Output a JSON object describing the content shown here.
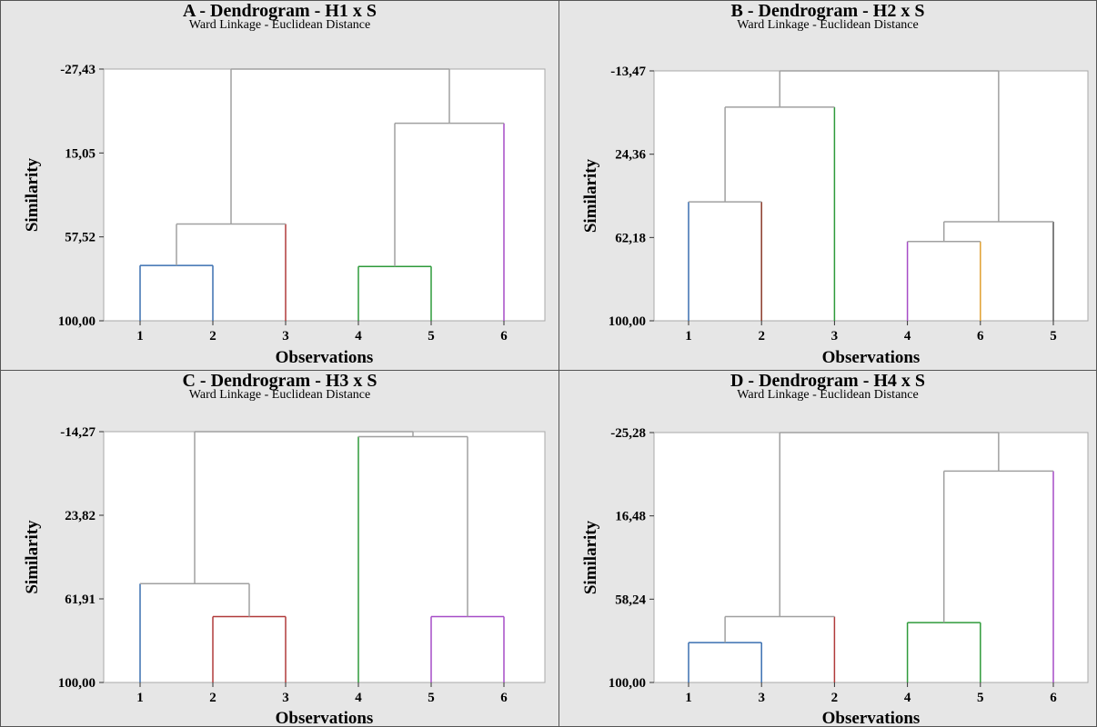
{
  "figure": {
    "background": "#e6e6e6",
    "plot_background": "#ffffff",
    "border_color": "#555555",
    "link_color": "#a0a0a0"
  },
  "chart_data": [
    {
      "type": "dendrogram",
      "panel": "A",
      "title": "A - Dendrogram - H1 x S",
      "subtitle": "Ward Linkage - Euclidean Distance",
      "xlabel": "Observations",
      "ylabel": "Similarity",
      "y_ticks": [
        "-27,43",
        "15,05",
        "57,52",
        "100,00"
      ],
      "ylim": [
        100,
        -27.43
      ],
      "leaf_order": [
        "1",
        "2",
        "3",
        "4",
        "5",
        "6"
      ],
      "merges": [
        {
          "left": "1",
          "right": "2",
          "similarity": 72,
          "color": "#3a6fb0"
        },
        {
          "left": "4",
          "right": "5",
          "similarity": 72.5,
          "color": "#2e9a3a"
        },
        {
          "left": "1-2",
          "right": "3",
          "similarity": 51,
          "color": "#a0a0a0"
        },
        {
          "left": "4-5",
          "right": "6",
          "similarity": 0,
          "color": "#a0a0a0"
        },
        {
          "left": "1-2-3",
          "right": "4-5-6",
          "similarity": -27.43,
          "color": "#a0a0a0"
        }
      ],
      "leaf_colors": {
        "1": "#3a6fb0",
        "2": "#3a6fb0",
        "3": "#b03a3a",
        "4": "#2e9a3a",
        "5": "#2e9a3a",
        "6": "#a64cc7"
      }
    },
    {
      "type": "dendrogram",
      "panel": "B",
      "title": "B - Dendrogram - H2 x S",
      "subtitle": "Ward Linkage - Euclidean Distance",
      "xlabel": "Observations",
      "ylabel": "Similarity",
      "y_ticks": [
        "-13,47",
        "24,36",
        "62,18",
        "100,00"
      ],
      "ylim": [
        100,
        -13.47
      ],
      "leaf_order": [
        "1",
        "2",
        "3",
        "4",
        "6",
        "5"
      ],
      "merges": [
        {
          "left": "4",
          "right": "6",
          "similarity": 64,
          "color": "#a0a0a0"
        },
        {
          "left": "4-6",
          "right": "5",
          "similarity": 55,
          "color": "#a0a0a0"
        },
        {
          "left": "1",
          "right": "2",
          "similarity": 46,
          "color": "#a0a0a0"
        },
        {
          "left": "1-2",
          "right": "3",
          "similarity": 3,
          "color": "#a0a0a0"
        },
        {
          "left": "1-2-3",
          "right": "4-6-5",
          "similarity": -13.47,
          "color": "#a0a0a0"
        }
      ],
      "leaf_colors": {
        "1": "#3a6fb0",
        "2": "#8b3a2a",
        "3": "#2e9a3a",
        "4": "#a64cc7",
        "6": "#e0a030",
        "5": "#555555"
      }
    },
    {
      "type": "dendrogram",
      "panel": "C",
      "title": "C - Dendrogram - H3 x S",
      "subtitle": "Ward Linkage - Euclidean Distance",
      "xlabel": "Observations",
      "ylabel": "Similarity",
      "y_ticks": [
        "-14,27",
        "23,82",
        "61,91",
        "100,00"
      ],
      "ylim": [
        100,
        -14.27
      ],
      "leaf_order": [
        "1",
        "2",
        "3",
        "4",
        "5",
        "6"
      ],
      "merges": [
        {
          "left": "2",
          "right": "3",
          "similarity": 70,
          "color": "#b03a3a"
        },
        {
          "left": "5",
          "right": "6",
          "similarity": 70,
          "color": "#a64cc7"
        },
        {
          "left": "1",
          "right": "2-3",
          "similarity": 55,
          "color": "#a0a0a0"
        },
        {
          "left": "4",
          "right": "5-6",
          "similarity": -12,
          "color": "#a0a0a0"
        },
        {
          "left": "1-2-3",
          "right": "4-5-6",
          "similarity": -14.27,
          "color": "#a0a0a0"
        }
      ],
      "leaf_colors": {
        "1": "#3a6fb0",
        "2": "#b03a3a",
        "3": "#b03a3a",
        "4": "#2e9a3a",
        "5": "#a64cc7",
        "6": "#a64cc7"
      }
    },
    {
      "type": "dendrogram",
      "panel": "D",
      "title": "D - Dendrogram - H4 x S",
      "subtitle": "Ward Linkage - Euclidean Distance",
      "xlabel": "Observations",
      "ylabel": "Similarity",
      "y_ticks": [
        "-25,28",
        "16,48",
        "58,24",
        "100,00"
      ],
      "ylim": [
        100,
        -25.28
      ],
      "leaf_order": [
        "1",
        "3",
        "2",
        "4",
        "5",
        "6"
      ],
      "merges": [
        {
          "left": "1",
          "right": "3",
          "similarity": 80,
          "color": "#3a6fb0"
        },
        {
          "left": "4",
          "right": "5",
          "similarity": 70,
          "color": "#2e9a3a"
        },
        {
          "left": "1-3",
          "right": "2",
          "similarity": 67,
          "color": "#a0a0a0"
        },
        {
          "left": "4-5",
          "right": "6",
          "similarity": -6,
          "color": "#a0a0a0"
        },
        {
          "left": "1-3-2",
          "right": "4-5-6",
          "similarity": -25.28,
          "color": "#a0a0a0"
        }
      ],
      "leaf_colors": {
        "1": "#3a6fb0",
        "3": "#3a6fb0",
        "2": "#b03a3a",
        "4": "#2e9a3a",
        "5": "#2e9a3a",
        "6": "#a64cc7"
      }
    }
  ]
}
